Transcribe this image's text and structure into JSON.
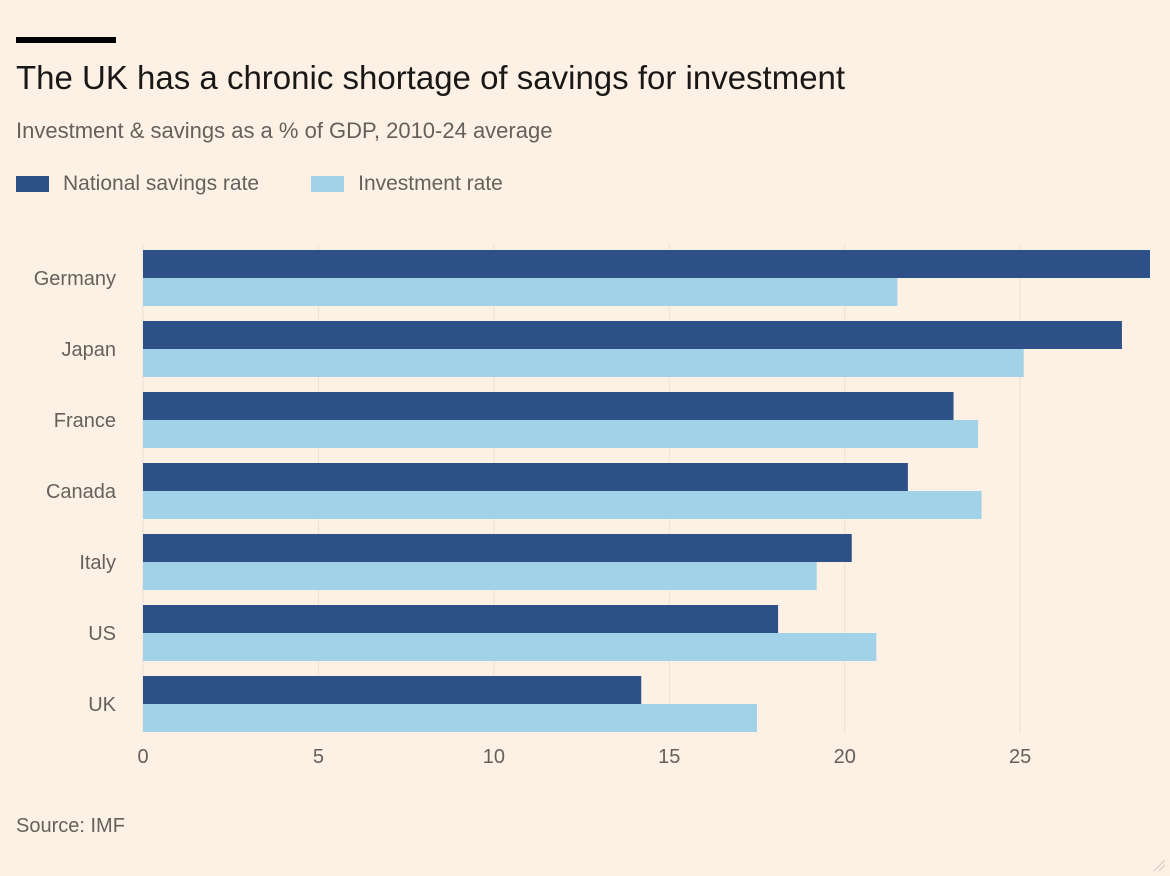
{
  "title": "The UK has a chronic shortage of savings for investment",
  "subtitle": "Investment & savings as a % of GDP, 2010-24 average",
  "source": "Source: IMF",
  "colors": {
    "savings": "#2d5186",
    "investment": "#a1d2e7",
    "grid": "#ece0d4",
    "axis_text": "#66605c",
    "background": "#fdf1e6"
  },
  "chart_data": {
    "type": "bar",
    "orientation": "horizontal",
    "title": "The UK has a chronic shortage of savings for investment",
    "subtitle": "Investment & savings as a % of GDP, 2010-24 average",
    "xlabel": "",
    "ylabel": "",
    "xlim": [
      0,
      28.7
    ],
    "xticks": [
      0,
      5,
      10,
      15,
      20,
      25
    ],
    "grid": true,
    "legend_position": "top-left",
    "categories": [
      "Germany",
      "Japan",
      "France",
      "Canada",
      "Italy",
      "US",
      "UK"
    ],
    "series": [
      {
        "name": "National savings rate",
        "color": "#2d5186",
        "values": [
          28.7,
          27.9,
          23.1,
          21.8,
          20.2,
          18.1,
          14.2
        ]
      },
      {
        "name": "Investment rate",
        "color": "#a1d2e7",
        "values": [
          21.5,
          25.1,
          23.8,
          23.9,
          19.2,
          20.9,
          17.5
        ]
      }
    ]
  }
}
